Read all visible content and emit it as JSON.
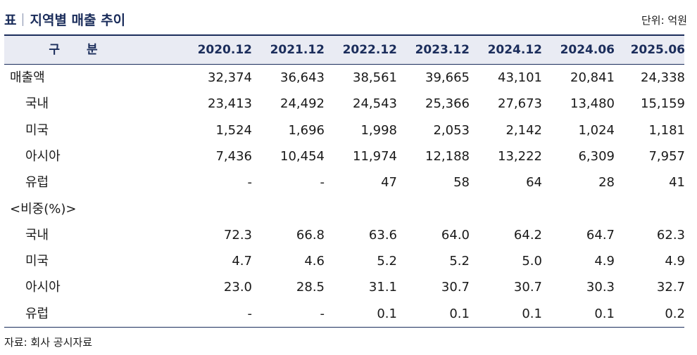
{
  "title": {
    "prefix": "표",
    "text": "지역별 매출 추이"
  },
  "unit": "단위: 억원",
  "header": {
    "label": "구 분",
    "columns": [
      "2020.12",
      "2021.12",
      "2022.12",
      "2023.12",
      "2024.12",
      "2024.06",
      "2025.06"
    ]
  },
  "rows": [
    {
      "label": "매출액",
      "indent": 0,
      "values": [
        "32,374",
        "36,643",
        "38,561",
        "39,665",
        "43,101",
        "20,841",
        "24,338"
      ]
    },
    {
      "label": "국내",
      "indent": 1,
      "values": [
        "23,413",
        "24,492",
        "24,543",
        "25,366",
        "27,673",
        "13,480",
        "15,159"
      ]
    },
    {
      "label": "미국",
      "indent": 1,
      "values": [
        "1,524",
        "1,696",
        "1,998",
        "2,053",
        "2,142",
        "1,024",
        "1,181"
      ]
    },
    {
      "label": "아시아",
      "indent": 1,
      "values": [
        "7,436",
        "10,454",
        "11,974",
        "12,188",
        "13,222",
        "6,309",
        "7,957"
      ]
    },
    {
      "label": "유럽",
      "indent": 1,
      "values": [
        "-",
        "-",
        "47",
        "58",
        "64",
        "28",
        "41"
      ]
    },
    {
      "label": "<비중(%)>",
      "indent": 0,
      "values": [
        "",
        "",
        "",
        "",
        "",
        "",
        ""
      ]
    },
    {
      "label": "국내",
      "indent": 1,
      "values": [
        "72.3",
        "66.8",
        "63.6",
        "64.0",
        "64.2",
        "64.7",
        "62.3"
      ]
    },
    {
      "label": "미국",
      "indent": 1,
      "values": [
        "4.7",
        "4.6",
        "5.2",
        "5.2",
        "5.0",
        "4.9",
        "4.9"
      ]
    },
    {
      "label": "아시아",
      "indent": 1,
      "values": [
        "23.0",
        "28.5",
        "31.1",
        "30.7",
        "30.7",
        "30.3",
        "32.7"
      ]
    },
    {
      "label": "유럽",
      "indent": 1,
      "values": [
        "-",
        "-",
        "0.1",
        "0.1",
        "0.1",
        "0.1",
        "0.2"
      ]
    }
  ],
  "source": "자료: 회사 공시자료"
}
